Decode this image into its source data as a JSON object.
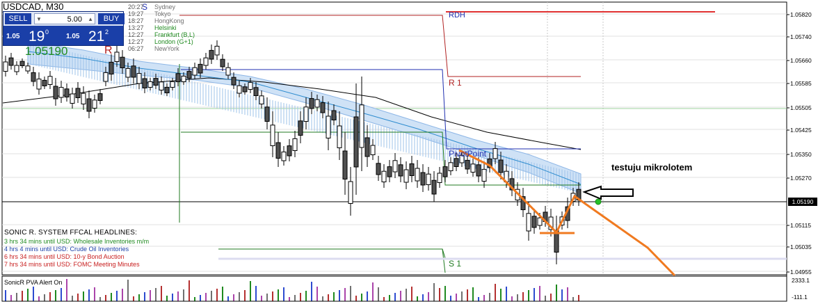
{
  "window": {
    "symbol": "USDCAD",
    "timeframe": "M30",
    "corner_mark": "S"
  },
  "trade_panel": {
    "sell_label": "SELL",
    "buy_label": "BUY",
    "lot_value": "5.00",
    "sell_quote": {
      "prefix": "1.05",
      "big": "19",
      "sup": "0"
    },
    "buy_quote": {
      "prefix": "1.05",
      "big": "21",
      "sup": "2"
    }
  },
  "current_price_display": "1.05190",
  "sessions": [
    {
      "time": "20:27",
      "name": "Sydney",
      "color": "#707070"
    },
    {
      "time": "19:27",
      "name": "Tokyo",
      "color": "#707070"
    },
    {
      "time": "18:27",
      "name": "HongKong",
      "color": "#707070"
    },
    {
      "time": "13:27",
      "name": "Helsinki",
      "color": "#1f8a1f"
    },
    {
      "time": "12:27",
      "name": "Frankfurt  (B,L)",
      "color": "#1f8a1f"
    },
    {
      "time": "12:27",
      "name": "London  (G+1)",
      "color": "#1f8a1f"
    },
    {
      "time": "06:27",
      "name": "NewYork",
      "color": "#707070"
    }
  ],
  "levels": {
    "rdh": "RDH",
    "r1": "R 1",
    "pivot": "PivotPoint",
    "s1": "S 1"
  },
  "headlines": {
    "title": "SONIC R. SYSTEM  FFCAL HEADLINES:",
    "items": [
      {
        "text": "3 hrs 34 mins until USD: Wholesale Inventories m/m",
        "color": "#1f8a1f"
      },
      {
        "text": "4 hrs 4 mins until USD: Crude Oil Inventories",
        "color": "#1a3fa8"
      },
      {
        "text": "6 hrs 34 mins until USD: 10-y Bond Auction",
        "color": "#c82020"
      },
      {
        "text": "7 hrs 34 mins until USD: FOMC Meeting Minutes",
        "color": "#c82020"
      }
    ]
  },
  "annotation": "testuju mikrolotem",
  "price_axis": {
    "labels": [
      "1.05820",
      "1.05740",
      "1.05660",
      "1.05585",
      "1.05505",
      "1.05425",
      "1.05350",
      "1.05270",
      "1.05115",
      "1.05035",
      "1.04955"
    ],
    "current": "1.05190"
  },
  "pva": {
    "label": "SonicR PVA   Alert On",
    "axis_top": "2333.1",
    "axis_bottom": "-111.1"
  },
  "colors": {
    "bull": "#ffffff",
    "bear": "#505050",
    "dragon": "#9ec3ea",
    "resistance": "#b02020",
    "pivot": "#1f2fb0",
    "support": "#1f7a1f",
    "orange": "#f07a20"
  }
}
